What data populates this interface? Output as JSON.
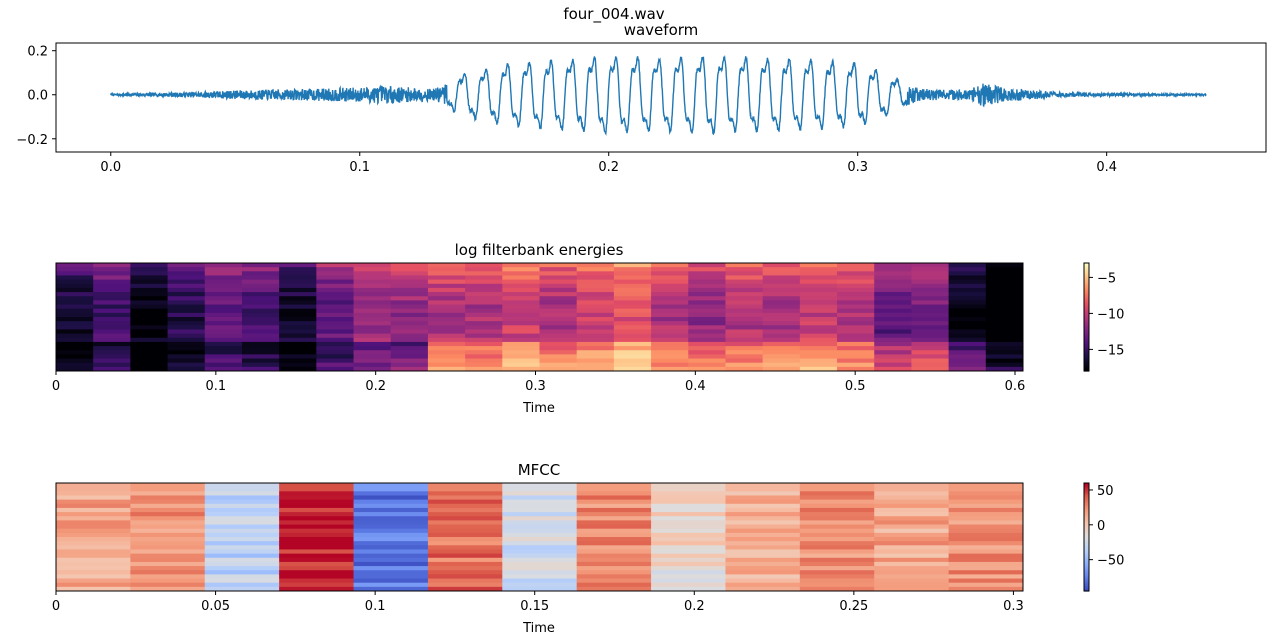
{
  "figure": {
    "suptitle": "four_004.wav"
  },
  "chart_data": [
    {
      "type": "line",
      "title": "waveform",
      "xlabel": "",
      "ylabel": "",
      "xlim": [
        -0.022,
        0.464
      ],
      "ylim": [
        -0.26,
        0.235
      ],
      "xticks": [
        0.0,
        0.1,
        0.2,
        0.3,
        0.4
      ],
      "xtick_labels": [
        "0.0",
        "0.1",
        "0.2",
        "0.3",
        "0.4"
      ],
      "yticks": [
        -0.2,
        0.0,
        0.2
      ],
      "ytick_labels": [
        "−0.2",
        "0.0",
        "0.2"
      ],
      "color": "#1f77b4",
      "envelope": {
        "t": [
          0.0,
          0.01,
          0.03,
          0.05,
          0.08,
          0.1,
          0.11,
          0.13,
          0.135,
          0.14,
          0.16,
          0.18,
          0.2,
          0.22,
          0.24,
          0.26,
          0.28,
          0.3,
          0.31,
          0.325,
          0.345,
          0.35,
          0.36,
          0.38,
          0.4,
          0.44
        ],
        "amp": [
          0.004,
          0.007,
          0.012,
          0.022,
          0.03,
          0.038,
          0.045,
          0.03,
          0.06,
          0.11,
          0.17,
          0.19,
          0.21,
          0.2,
          0.21,
          0.2,
          0.19,
          0.17,
          0.12,
          0.03,
          0.025,
          0.06,
          0.035,
          0.015,
          0.008,
          0.004
        ]
      }
    },
    {
      "type": "heatmap",
      "title": "log filterbank energies",
      "xlabel": "Time",
      "xlim": [
        0,
        0.605
      ],
      "xticks": [
        0,
        0.1,
        0.2,
        0.3,
        0.4,
        0.5,
        0.6
      ],
      "xtick_labels": [
        "0",
        "0.1",
        "0.2",
        "0.3",
        "0.4",
        "0.5",
        "0.6"
      ],
      "colormap": "magma",
      "clim": [
        -18,
        -3
      ],
      "colorbar_ticks": [
        -5,
        -10,
        -15
      ],
      "colorbar_tick_labels": [
        "−5",
        "−10",
        "−15"
      ],
      "frames": 26,
      "bands": 26,
      "top_row_levels": [
        -14,
        -12,
        -15,
        -13,
        -11,
        -12,
        -14,
        -11,
        -9,
        -9,
        -8,
        -8,
        -7,
        -8,
        -7,
        -6,
        -8,
        -9,
        -8,
        -8,
        -7,
        -8,
        -11,
        -10,
        -15,
        -18
      ]
    },
    {
      "type": "heatmap",
      "title": "MFCC",
      "xlabel": "Time",
      "xlim": [
        0,
        0.303
      ],
      "xticks": [
        0,
        0.05,
        0.1,
        0.15,
        0.2,
        0.25,
        0.3
      ],
      "xtick_labels": [
        "0",
        "0.05",
        "0.1",
        "0.15",
        "0.2",
        "0.25",
        "0.3"
      ],
      "colormap": "coolwarm",
      "clim": [
        -95,
        60
      ],
      "colorbar_ticks": [
        50,
        0,
        -50
      ],
      "colorbar_tick_labels": [
        "50",
        "0",
        "−50"
      ],
      "frames": 13,
      "coefficients": 26,
      "frame_levels": [
        15,
        25,
        -35,
        55,
        -80,
        35,
        -25,
        25,
        -10,
        10,
        25,
        15,
        25
      ]
    }
  ]
}
